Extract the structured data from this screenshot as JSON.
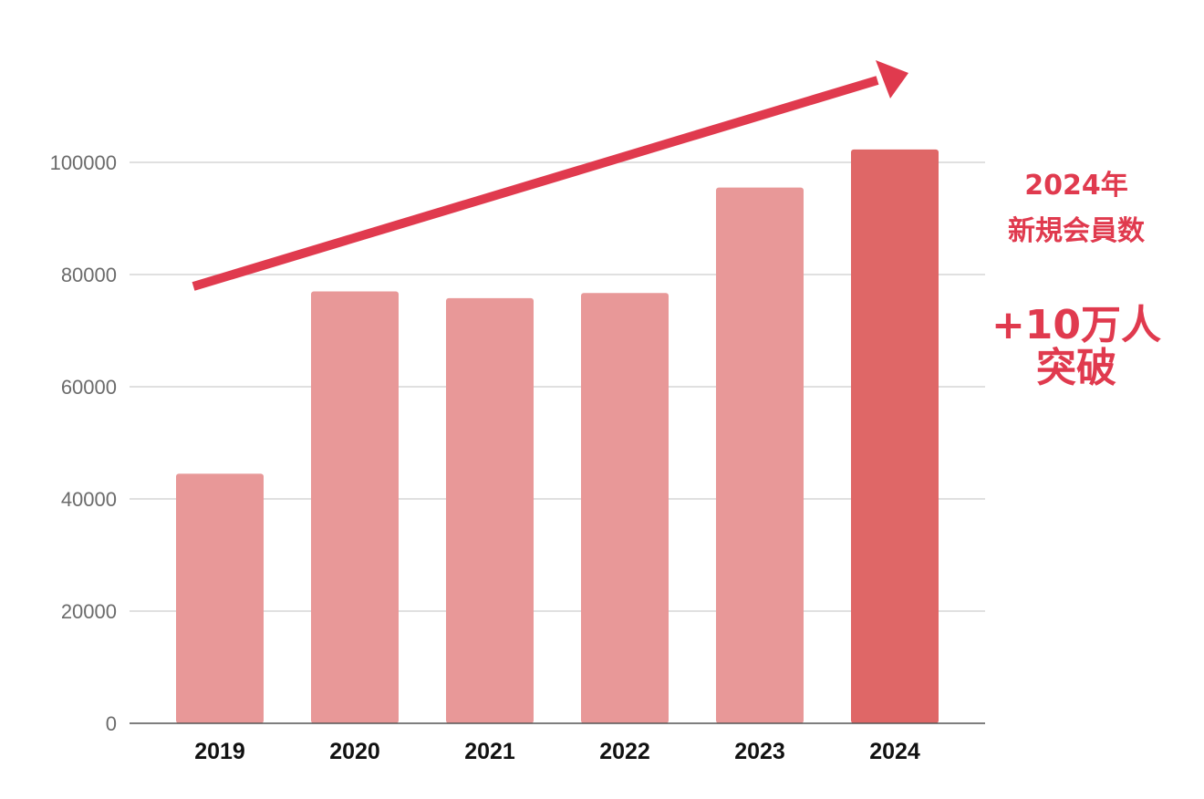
{
  "chart_data": {
    "type": "bar",
    "categories": [
      "2019",
      "2020",
      "2021",
      "2022",
      "2023",
      "2024"
    ],
    "values": [
      44500,
      77000,
      75800,
      76700,
      95500,
      102300
    ],
    "highlight_index": 5,
    "ylim": [
      0,
      100000
    ],
    "yticks": [
      0,
      20000,
      40000,
      60000,
      80000,
      100000
    ],
    "ytick_labels": [
      "0",
      "20000",
      "40000",
      "60000",
      "80000",
      "100000"
    ],
    "grid": true,
    "legend": "none",
    "colors": {
      "bar": "#e89898",
      "bar_highlight": "#df6767",
      "arrow": "#e03a4e",
      "grid": "#d6d6d6",
      "axis": "#555555"
    },
    "annotations": {
      "trend_arrow": "up-right",
      "callout_year": "2024年",
      "callout_subtitle": "新規会員数",
      "callout_headline": "+10万人",
      "callout_headline_2": "突破"
    }
  }
}
